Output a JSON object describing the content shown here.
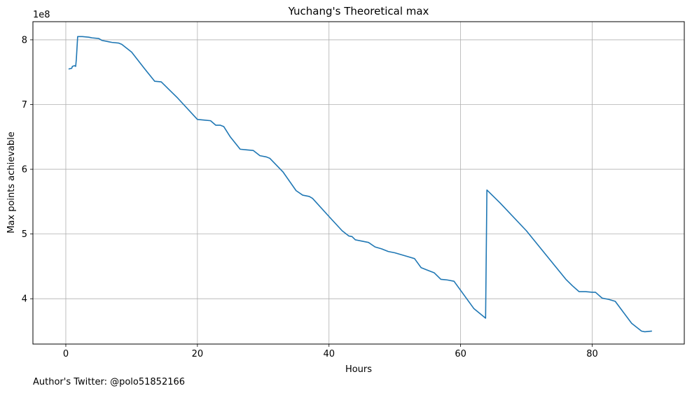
{
  "chart_data": {
    "type": "line",
    "title": "Yuchang's Theoretical max",
    "xlabel": "Hours",
    "ylabel": "Max points achievable",
    "y_offset_label": "1e8",
    "xlim": [
      -5,
      94
    ],
    "ylim": [
      3.3,
      8.28
    ],
    "x_ticks": [
      0,
      20,
      40,
      60,
      80
    ],
    "x_tick_labels": [
      "0",
      "20",
      "40",
      "60",
      "80"
    ],
    "y_ticks": [
      4,
      5,
      6,
      7,
      8
    ],
    "y_tick_labels": [
      "4",
      "5",
      "6",
      "7",
      "8"
    ],
    "grid": true,
    "line_color": "#1f77b4",
    "grid_color": "#b0b0b0",
    "series": [
      {
        "x": [
          0.5,
          0.9,
          1.0,
          1.3,
          1.5,
          1.6,
          1.8,
          2.5,
          3.5,
          4.0,
          5.0,
          5.5,
          6.0,
          6.5,
          7.0,
          8.0,
          8.5,
          10.0,
          12.0,
          13.5,
          14.5,
          15.0,
          17.0,
          20.0,
          21.0,
          22.0,
          22.8,
          23.5,
          24.0,
          25.0,
          26.5,
          27.5,
          28.5,
          29.5,
          30.5,
          31.0,
          33.0,
          35.0,
          36.0,
          37.0,
          37.5,
          40.0,
          42.0,
          43.0,
          43.5,
          44.0,
          45.0,
          46.0,
          47.0,
          48.0,
          49.0,
          50.0,
          51.0,
          52.0,
          53.0,
          54.0,
          55.0,
          56.0,
          57.0,
          58.0,
          59.0,
          62.0,
          63.8,
          64.0,
          66.0,
          70.0,
          76.0,
          77.0,
          78.0,
          79.0,
          80.0,
          80.5,
          81.5,
          82.5,
          83.5,
          86.0,
          87.5,
          88.0,
          89.0
        ],
        "y": [
          7.55,
          7.56,
          7.59,
          7.6,
          7.59,
          7.7,
          8.05,
          8.05,
          8.04,
          8.03,
          8.02,
          7.99,
          7.98,
          7.97,
          7.96,
          7.95,
          7.93,
          7.81,
          7.55,
          7.36,
          7.35,
          7.3,
          7.1,
          6.77,
          6.76,
          6.75,
          6.68,
          6.68,
          6.66,
          6.5,
          6.31,
          6.3,
          6.29,
          6.21,
          6.19,
          6.17,
          5.96,
          5.67,
          5.6,
          5.58,
          5.55,
          5.27,
          5.05,
          4.97,
          4.96,
          4.91,
          4.89,
          4.87,
          4.8,
          4.77,
          4.73,
          4.71,
          4.68,
          4.65,
          4.62,
          4.48,
          4.44,
          4.4,
          4.3,
          4.29,
          4.27,
          3.85,
          3.7,
          5.68,
          5.48,
          5.05,
          4.3,
          4.2,
          4.11,
          4.11,
          4.1,
          4.1,
          4.01,
          3.99,
          3.96,
          3.62,
          3.5,
          3.49,
          3.5
        ]
      }
    ]
  },
  "footer_text": "Author's Twitter: @polo51852166"
}
